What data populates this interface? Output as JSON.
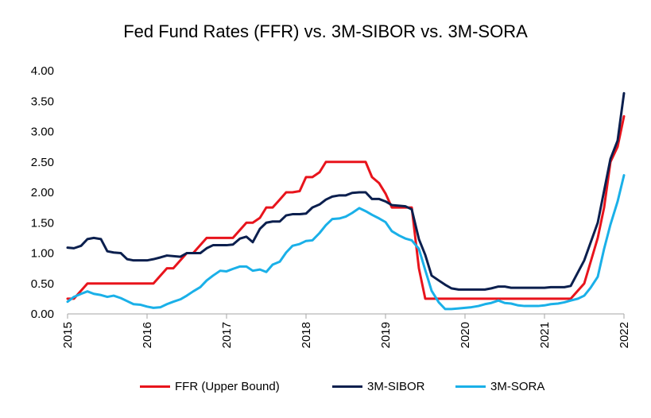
{
  "chart_data": {
    "type": "line",
    "title": "Fed Fund Rates (FFR) vs. 3M-SIBOR vs. 3M-SORA",
    "xlabel": "",
    "ylabel": "",
    "x_ticks": [
      "2015",
      "2016",
      "2017",
      "2018",
      "2019",
      "2020",
      "2021",
      "2022"
    ],
    "xlim": [
      2015,
      2022
    ],
    "y_ticks": [
      "0.00",
      "0.50",
      "1.00",
      "1.50",
      "2.00",
      "2.50",
      "3.00",
      "3.50",
      "4.00"
    ],
    "ylim": [
      0,
      4
    ],
    "grid": false,
    "legend_position": "bottom",
    "series": [
      {
        "name": "FFR (Upper Bound)",
        "color": "#e8141c",
        "points": [
          [
            2015.0,
            0.25
          ],
          [
            2015.08,
            0.25
          ],
          [
            2015.25,
            0.5
          ],
          [
            2015.5,
            0.5
          ],
          [
            2015.75,
            0.5
          ],
          [
            2016.0,
            0.5
          ],
          [
            2016.08,
            0.5
          ],
          [
            2016.25,
            0.75
          ],
          [
            2016.33,
            0.75
          ],
          [
            2016.5,
            1.0
          ],
          [
            2016.58,
            1.0
          ],
          [
            2016.75,
            1.25
          ],
          [
            2017.0,
            1.25
          ],
          [
            2017.08,
            1.25
          ],
          [
            2017.25,
            1.5
          ],
          [
            2017.33,
            1.5
          ],
          [
            2017.42,
            1.58
          ],
          [
            2017.5,
            1.75
          ],
          [
            2017.58,
            1.75
          ],
          [
            2017.67,
            1.88
          ],
          [
            2017.75,
            2.0
          ],
          [
            2017.83,
            2.0
          ],
          [
            2017.92,
            2.02
          ],
          [
            2018.0,
            2.25
          ],
          [
            2018.08,
            2.25
          ],
          [
            2018.17,
            2.33
          ],
          [
            2018.25,
            2.5
          ],
          [
            2018.5,
            2.5
          ],
          [
            2018.75,
            2.5
          ],
          [
            2018.83,
            2.25
          ],
          [
            2018.92,
            2.15
          ],
          [
            2019.0,
            1.98
          ],
          [
            2019.08,
            1.75
          ],
          [
            2019.25,
            1.75
          ],
          [
            2019.33,
            1.75
          ],
          [
            2019.42,
            0.75
          ],
          [
            2019.5,
            0.25
          ],
          [
            2019.75,
            0.25
          ],
          [
            2020.0,
            0.25
          ],
          [
            2020.5,
            0.25
          ],
          [
            2021.0,
            0.25
          ],
          [
            2021.33,
            0.25
          ],
          [
            2021.5,
            0.5
          ],
          [
            2021.67,
            1.25
          ],
          [
            2021.75,
            1.75
          ],
          [
            2021.83,
            2.5
          ],
          [
            2021.92,
            2.75
          ],
          [
            2022.0,
            3.25
          ]
        ]
      },
      {
        "name": "3M-SIBOR",
        "color": "#0b1f4e",
        "points": [
          [
            2015.0,
            1.09
          ],
          [
            2015.08,
            1.08
          ],
          [
            2015.17,
            1.12
          ],
          [
            2015.25,
            1.23
          ],
          [
            2015.33,
            1.25
          ],
          [
            2015.42,
            1.23
          ],
          [
            2015.5,
            1.03
          ],
          [
            2015.58,
            1.01
          ],
          [
            2015.67,
            1.0
          ],
          [
            2015.75,
            0.9
          ],
          [
            2015.83,
            0.88
          ],
          [
            2016.0,
            0.88
          ],
          [
            2016.08,
            0.9
          ],
          [
            2016.17,
            0.93
          ],
          [
            2016.25,
            0.96
          ],
          [
            2016.42,
            0.94
          ],
          [
            2016.5,
            1.0
          ],
          [
            2016.67,
            1.0
          ],
          [
            2016.75,
            1.08
          ],
          [
            2016.83,
            1.13
          ],
          [
            2017.0,
            1.13
          ],
          [
            2017.08,
            1.14
          ],
          [
            2017.17,
            1.24
          ],
          [
            2017.25,
            1.27
          ],
          [
            2017.33,
            1.18
          ],
          [
            2017.42,
            1.4
          ],
          [
            2017.5,
            1.5
          ],
          [
            2017.58,
            1.52
          ],
          [
            2017.67,
            1.52
          ],
          [
            2017.75,
            1.62
          ],
          [
            2017.83,
            1.64
          ],
          [
            2017.92,
            1.64
          ],
          [
            2018.0,
            1.65
          ],
          [
            2018.08,
            1.75
          ],
          [
            2018.17,
            1.8
          ],
          [
            2018.25,
            1.88
          ],
          [
            2018.33,
            1.93
          ],
          [
            2018.42,
            1.95
          ],
          [
            2018.5,
            1.95
          ],
          [
            2018.58,
            1.99
          ],
          [
            2018.67,
            2.0
          ],
          [
            2018.75,
            2.0
          ],
          [
            2018.83,
            1.89
          ],
          [
            2018.92,
            1.89
          ],
          [
            2019.0,
            1.85
          ],
          [
            2019.08,
            1.79
          ],
          [
            2019.17,
            1.78
          ],
          [
            2019.25,
            1.77
          ],
          [
            2019.33,
            1.72
          ],
          [
            2019.42,
            1.23
          ],
          [
            2019.5,
            0.97
          ],
          [
            2019.58,
            0.63
          ],
          [
            2019.67,
            0.55
          ],
          [
            2019.75,
            0.48
          ],
          [
            2019.83,
            0.42
          ],
          [
            2019.92,
            0.4
          ],
          [
            2020.0,
            0.4
          ],
          [
            2020.25,
            0.4
          ],
          [
            2020.33,
            0.42
          ],
          [
            2020.42,
            0.45
          ],
          [
            2020.5,
            0.45
          ],
          [
            2020.58,
            0.43
          ],
          [
            2021.0,
            0.43
          ],
          [
            2021.08,
            0.44
          ],
          [
            2021.25,
            0.44
          ],
          [
            2021.33,
            0.46
          ],
          [
            2021.5,
            0.88
          ],
          [
            2021.67,
            1.5
          ],
          [
            2021.83,
            2.55
          ],
          [
            2021.92,
            2.85
          ],
          [
            2022.0,
            3.63
          ]
        ]
      },
      {
        "name": "3M-SORA",
        "color": "#1ab0e8",
        "points": [
          [
            2015.0,
            0.2
          ],
          [
            2015.08,
            0.28
          ],
          [
            2015.17,
            0.33
          ],
          [
            2015.25,
            0.37
          ],
          [
            2015.33,
            0.33
          ],
          [
            2015.42,
            0.31
          ],
          [
            2015.5,
            0.28
          ],
          [
            2015.58,
            0.3
          ],
          [
            2015.67,
            0.26
          ],
          [
            2015.75,
            0.21
          ],
          [
            2015.83,
            0.16
          ],
          [
            2015.92,
            0.15
          ],
          [
            2016.0,
            0.12
          ],
          [
            2016.08,
            0.1
          ],
          [
            2016.17,
            0.11
          ],
          [
            2016.25,
            0.16
          ],
          [
            2016.33,
            0.2
          ],
          [
            2016.42,
            0.24
          ],
          [
            2016.5,
            0.3
          ],
          [
            2016.58,
            0.37
          ],
          [
            2016.67,
            0.44
          ],
          [
            2016.75,
            0.55
          ],
          [
            2016.83,
            0.63
          ],
          [
            2016.92,
            0.71
          ],
          [
            2017.0,
            0.7
          ],
          [
            2017.08,
            0.74
          ],
          [
            2017.17,
            0.78
          ],
          [
            2017.25,
            0.78
          ],
          [
            2017.33,
            0.71
          ],
          [
            2017.42,
            0.73
          ],
          [
            2017.5,
            0.69
          ],
          [
            2017.58,
            0.81
          ],
          [
            2017.67,
            0.86
          ],
          [
            2017.75,
            1.01
          ],
          [
            2017.83,
            1.12
          ],
          [
            2017.92,
            1.15
          ],
          [
            2018.0,
            1.2
          ],
          [
            2018.08,
            1.21
          ],
          [
            2018.17,
            1.33
          ],
          [
            2018.25,
            1.46
          ],
          [
            2018.33,
            1.56
          ],
          [
            2018.42,
            1.57
          ],
          [
            2018.5,
            1.6
          ],
          [
            2018.58,
            1.66
          ],
          [
            2018.67,
            1.74
          ],
          [
            2018.75,
            1.69
          ],
          [
            2018.83,
            1.63
          ],
          [
            2018.92,
            1.57
          ],
          [
            2019.0,
            1.51
          ],
          [
            2019.08,
            1.36
          ],
          [
            2019.17,
            1.29
          ],
          [
            2019.25,
            1.24
          ],
          [
            2019.33,
            1.21
          ],
          [
            2019.42,
            1.07
          ],
          [
            2019.5,
            0.72
          ],
          [
            2019.58,
            0.38
          ],
          [
            2019.67,
            0.19
          ],
          [
            2019.75,
            0.08
          ],
          [
            2019.83,
            0.08
          ],
          [
            2019.92,
            0.09
          ],
          [
            2020.0,
            0.1
          ],
          [
            2020.08,
            0.11
          ],
          [
            2020.17,
            0.13
          ],
          [
            2020.25,
            0.16
          ],
          [
            2020.33,
            0.18
          ],
          [
            2020.42,
            0.22
          ],
          [
            2020.5,
            0.18
          ],
          [
            2020.58,
            0.17
          ],
          [
            2020.67,
            0.14
          ],
          [
            2020.75,
            0.13
          ],
          [
            2020.92,
            0.13
          ],
          [
            2021.0,
            0.14
          ],
          [
            2021.08,
            0.16
          ],
          [
            2021.17,
            0.17
          ],
          [
            2021.25,
            0.19
          ],
          [
            2021.33,
            0.22
          ],
          [
            2021.42,
            0.25
          ],
          [
            2021.5,
            0.3
          ],
          [
            2021.58,
            0.43
          ],
          [
            2021.67,
            0.61
          ],
          [
            2021.75,
            1.07
          ],
          [
            2021.83,
            1.47
          ],
          [
            2021.92,
            1.85
          ],
          [
            2022.0,
            2.28
          ]
        ]
      }
    ]
  }
}
